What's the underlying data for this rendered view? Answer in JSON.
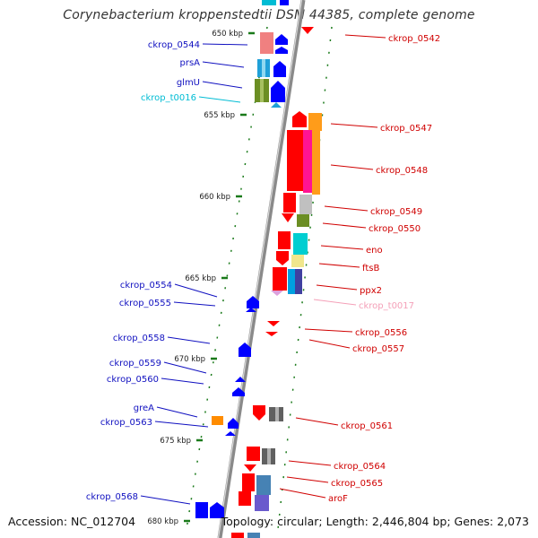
{
  "title": "Corynebacterium kroppenstedtii DSM 44385, complete genome",
  "footer": {
    "accession": "Accession: NC_012704",
    "summary": "Topology: circular; Length: 2,446,804 bp; Genes: 2,073"
  },
  "colors": {
    "backbone": "#8a8a8a",
    "left_labels": "#1010c0",
    "right_labels": "#d00000",
    "trna_left": "#00bcd4",
    "trna_right": "#f4a0b8",
    "tick": "#1a7a1a"
  },
  "scale_labels": [
    "650 kbp",
    "655 kbp",
    "660 kbp",
    "665 kbp",
    "670 kbp",
    "675 kbp",
    "680 kbp"
  ],
  "left_genes": [
    "ckrop_0544",
    "prsA",
    "glmU",
    "ckrop_t0016",
    "ckrop_0554",
    "ckrop_0555",
    "ckrop_0558",
    "ckrop_0559",
    "ckrop_0560",
    "greA",
    "ckrop_0563",
    "ckrop_0568"
  ],
  "right_genes": [
    "ckrop_0542",
    "ckrop_0547",
    "ckrop_0548",
    "ckrop_0549",
    "ckrop_0550",
    "eno",
    "ftsB",
    "ppx2",
    "ckrop_t0017",
    "ckrop_0556",
    "ckrop_0557",
    "ckrop_0561",
    "ckrop_0564",
    "ckrop_0565",
    "aroF"
  ]
}
